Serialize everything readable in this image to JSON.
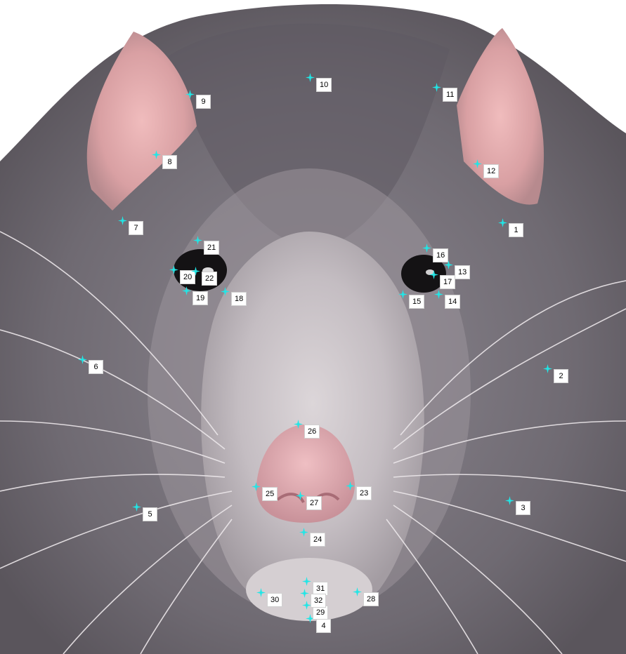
{
  "image": {
    "subject": "rat-face",
    "colors": {
      "marker": "#21e6e6",
      "label_bg": "#ffffff",
      "fur": "#7d7880",
      "ear": "#e3a9ab",
      "nose": "#d99ea3"
    }
  },
  "landmarks": [
    {
      "id": "1",
      "label": "1",
      "icon": "crosshair-star-icon"
    },
    {
      "id": "2",
      "label": "2",
      "icon": "crosshair-star-icon"
    },
    {
      "id": "3",
      "label": "3",
      "icon": "crosshair-star-icon"
    },
    {
      "id": "4",
      "label": "4",
      "icon": "crosshair-star-icon"
    },
    {
      "id": "5",
      "label": "5",
      "icon": "crosshair-star-icon"
    },
    {
      "id": "6",
      "label": "6",
      "icon": "crosshair-star-icon"
    },
    {
      "id": "7",
      "label": "7",
      "icon": "crosshair-star-icon"
    },
    {
      "id": "8",
      "label": "8",
      "icon": "crosshair-star-icon"
    },
    {
      "id": "9",
      "label": "9",
      "icon": "crosshair-star-icon"
    },
    {
      "id": "10",
      "label": "10",
      "icon": "crosshair-star-icon"
    },
    {
      "id": "11",
      "label": "11",
      "icon": "crosshair-star-icon"
    },
    {
      "id": "12",
      "label": "12",
      "icon": "crosshair-star-icon"
    },
    {
      "id": "13",
      "label": "13",
      "icon": "crosshair-star-icon"
    },
    {
      "id": "14",
      "label": "14",
      "icon": "crosshair-star-icon"
    },
    {
      "id": "15",
      "label": "15",
      "icon": "crosshair-star-icon"
    },
    {
      "id": "16",
      "label": "16",
      "icon": "crosshair-star-icon"
    },
    {
      "id": "17",
      "label": "17",
      "icon": "crosshair-star-icon"
    },
    {
      "id": "18",
      "label": "18",
      "icon": "crosshair-star-icon"
    },
    {
      "id": "19",
      "label": "19",
      "icon": "crosshair-star-icon"
    },
    {
      "id": "20",
      "label": "20",
      "icon": "crosshair-star-icon"
    },
    {
      "id": "21",
      "label": "21",
      "icon": "crosshair-star-icon"
    },
    {
      "id": "22",
      "label": "22",
      "icon": "crosshair-star-icon"
    },
    {
      "id": "23",
      "label": "23",
      "icon": "crosshair-star-icon"
    },
    {
      "id": "24",
      "label": "24",
      "icon": "crosshair-star-icon"
    },
    {
      "id": "25",
      "label": "25",
      "icon": "crosshair-star-icon"
    },
    {
      "id": "26",
      "label": "26",
      "icon": "crosshair-star-icon"
    },
    {
      "id": "27",
      "label": "27",
      "icon": "crosshair-star-icon"
    },
    {
      "id": "28",
      "label": "28",
      "icon": "crosshair-star-icon"
    },
    {
      "id": "29",
      "label": "29",
      "icon": "crosshair-star-icon"
    },
    {
      "id": "30",
      "label": "30",
      "icon": "crosshair-star-icon"
    },
    {
      "id": "31",
      "label": "31",
      "icon": "crosshair-star-icon"
    },
    {
      "id": "32",
      "label": "32",
      "icon": "crosshair-star-icon"
    }
  ]
}
